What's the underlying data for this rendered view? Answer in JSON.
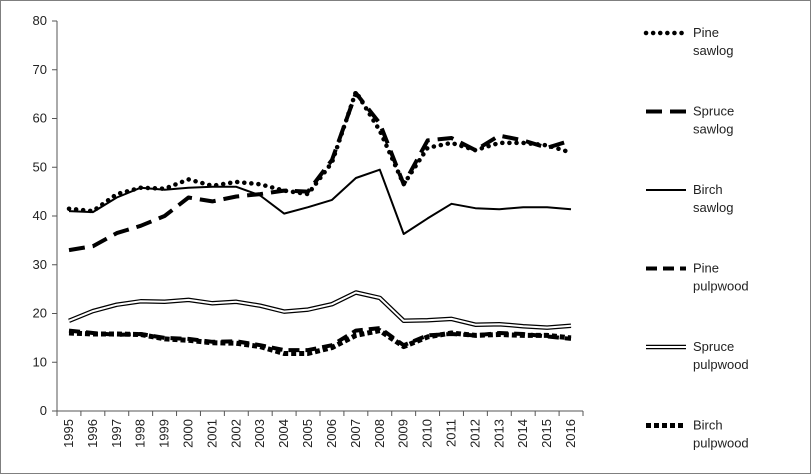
{
  "chart_data": {
    "type": "line",
    "title": "",
    "xlabel": "",
    "ylabel": "",
    "ylim": [
      0,
      80
    ],
    "yticks": [
      0,
      10,
      20,
      30,
      40,
      50,
      60,
      70,
      80
    ],
    "x": [
      "1995",
      "1996",
      "1997",
      "1998",
      "1999",
      "2000",
      "2001",
      "2002",
      "2003",
      "2004",
      "2005",
      "2006",
      "2007",
      "2008",
      "2009",
      "2010",
      "2011",
      "2012",
      "2013",
      "2014",
      "2015",
      "2016"
    ],
    "grid": false,
    "legend_position": "right",
    "series": [
      {
        "name_line1": "Pine",
        "name_line2": "sawlog",
        "style": "dotted",
        "values": [
          41.5,
          41.0,
          44.5,
          45.8,
          45.6,
          47.5,
          46.2,
          47.0,
          46.5,
          45.2,
          44.5,
          51.0,
          65.5,
          57.5,
          46.5,
          54.0,
          55.0,
          53.5,
          55.0,
          55.0,
          54.5,
          53.0
        ]
      },
      {
        "name_line1": "Spruce",
        "name_line2": "sawlog",
        "style": "long-dash",
        "values": [
          33.0,
          33.8,
          36.5,
          38.0,
          40.0,
          43.8,
          43.0,
          44.0,
          44.5,
          45.2,
          45.0,
          51.5,
          65.2,
          59.0,
          46.5,
          55.5,
          56.0,
          53.5,
          56.5,
          55.5,
          54.0,
          55.5
        ]
      },
      {
        "name_line1": "Birch",
        "name_line2": "sawlog",
        "style": "solid",
        "values": [
          41.0,
          40.8,
          43.8,
          45.8,
          45.4,
          45.8,
          46.0,
          46.0,
          44.2,
          40.5,
          41.8,
          43.3,
          47.8,
          49.5,
          36.3,
          39.5,
          42.5,
          41.6,
          41.4,
          41.8,
          41.8,
          41.4
        ]
      },
      {
        "name_line1": "Pine",
        "name_line2": "pulpwood",
        "style": "dash",
        "values": [
          16.5,
          16.0,
          15.6,
          15.8,
          15.0,
          14.8,
          14.2,
          14.3,
          13.5,
          12.5,
          12.5,
          13.5,
          16.5,
          17.0,
          13.5,
          15.5,
          15.8,
          15.5,
          16.0,
          15.8,
          15.3,
          14.8
        ]
      },
      {
        "name_line1": "Spruce",
        "name_line2": "pulpwood",
        "style": "double",
        "values": [
          18.5,
          20.5,
          21.8,
          22.5,
          22.4,
          22.8,
          22.1,
          22.4,
          21.6,
          20.4,
          20.8,
          21.9,
          24.3,
          23.2,
          18.5,
          18.6,
          18.9,
          17.7,
          17.8,
          17.4,
          17.1,
          17.5
        ]
      },
      {
        "name_line1": "Birch",
        "name_line2": "pulpwood",
        "style": "heavy-dotted",
        "values": [
          16.0,
          15.8,
          15.8,
          15.7,
          14.8,
          14.5,
          14.0,
          13.9,
          13.2,
          11.8,
          11.8,
          13.0,
          15.5,
          16.5,
          13.2,
          15.2,
          16.0,
          15.5,
          15.7,
          15.5,
          15.5,
          15.0
        ]
      }
    ]
  }
}
